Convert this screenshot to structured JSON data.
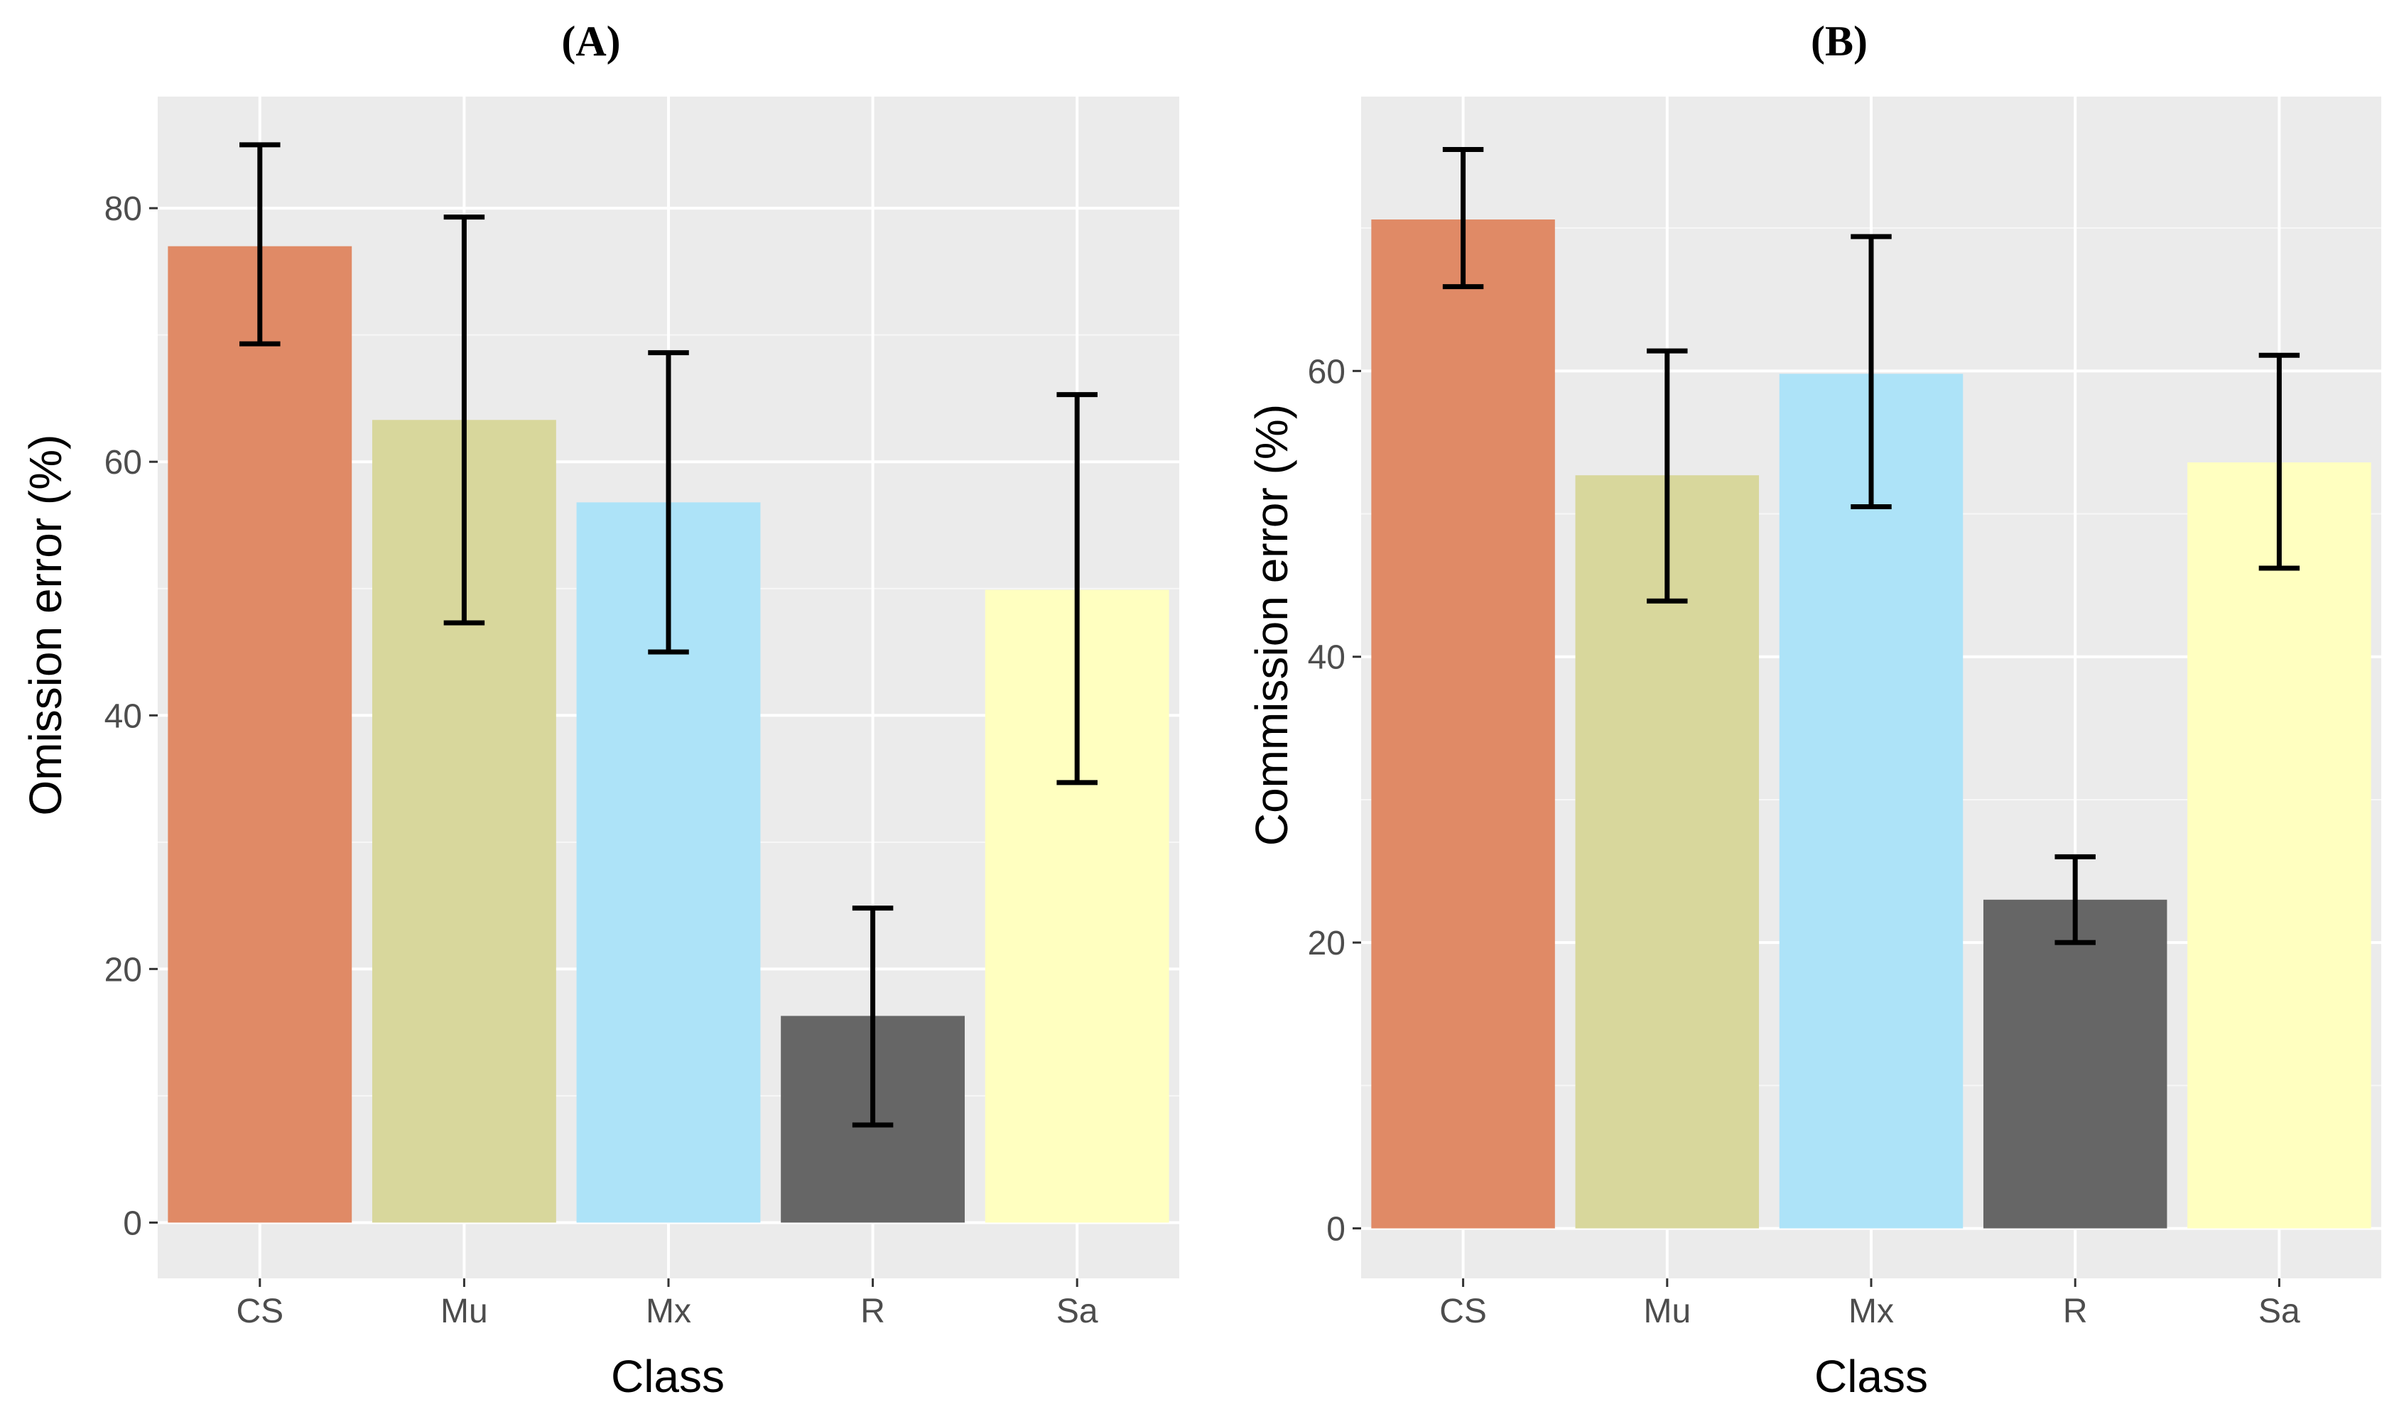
{
  "chart_data": [
    {
      "type": "bar",
      "panel_label": "(A)",
      "title": "",
      "xlabel": "Class",
      "ylabel": "Omission error (%)",
      "categories": [
        "CS",
        "Mu",
        "Mx",
        "R",
        "Sa"
      ],
      "values": [
        77,
        63.3,
        56.8,
        16.3,
        49.9
      ],
      "error_low": [
        69.3,
        47.3,
        45,
        7.7,
        34.7
      ],
      "error_high": [
        85,
        79.3,
        68.6,
        24.8,
        65.3
      ],
      "colors": [
        "#E08A66",
        "#D8D79C",
        "#ADE3F8",
        "#666666",
        "#FFFFC0"
      ],
      "ylim": [
        -4.4,
        88.8
      ],
      "yticks": [
        0,
        20,
        40,
        60,
        80
      ],
      "grid": true
    },
    {
      "type": "bar",
      "panel_label": "(B)",
      "title": "",
      "xlabel": "Class",
      "ylabel": "Commission error (%)",
      "categories": [
        "CS",
        "Mu",
        "Mx",
        "R",
        "Sa"
      ],
      "values": [
        70.6,
        52.7,
        59.8,
        23,
        53.6
      ],
      "error_low": [
        65.9,
        43.9,
        50.5,
        20,
        46.2
      ],
      "error_high": [
        75.5,
        61.4,
        69.4,
        26,
        61.1
      ],
      "colors": [
        "#E08A66",
        "#D8D79C",
        "#ADE3F8",
        "#666666",
        "#FFFFC0"
      ],
      "ylim": [
        -3.5,
        79.2
      ],
      "yticks": [
        0,
        20,
        40,
        60
      ],
      "grid": true
    }
  ]
}
